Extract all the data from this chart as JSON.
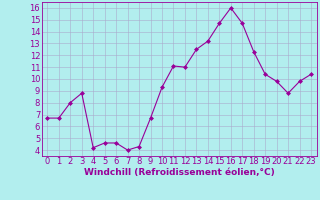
{
  "x": [
    0,
    1,
    2,
    3,
    4,
    5,
    6,
    7,
    8,
    9,
    10,
    11,
    12,
    13,
    14,
    15,
    16,
    17,
    18,
    19,
    20,
    21,
    22,
    23
  ],
  "y": [
    6.7,
    6.7,
    8.0,
    8.8,
    4.2,
    4.6,
    4.6,
    4.0,
    4.3,
    6.7,
    9.3,
    11.1,
    11.0,
    12.5,
    13.2,
    14.7,
    16.0,
    14.7,
    12.3,
    10.4,
    9.8,
    8.8,
    9.8,
    10.4
  ],
  "line_color": "#990099",
  "marker": "D",
  "marker_size": 2,
  "bg_color": "#b2eeee",
  "grid_color": "#aaaacc",
  "xlabel": "Windchill (Refroidissement éolien,°C)",
  "ylabel_ticks": [
    4,
    5,
    6,
    7,
    8,
    9,
    10,
    11,
    12,
    13,
    14,
    15,
    16
  ],
  "ylim": [
    3.5,
    16.5
  ],
  "xlim": [
    -0.5,
    23.5
  ],
  "xticks": [
    0,
    1,
    2,
    3,
    4,
    5,
    6,
    7,
    8,
    9,
    10,
    11,
    12,
    13,
    14,
    15,
    16,
    17,
    18,
    19,
    20,
    21,
    22,
    23
  ],
  "xlabel_fontsize": 6.5,
  "tick_fontsize": 6.0,
  "label_color": "#990099"
}
